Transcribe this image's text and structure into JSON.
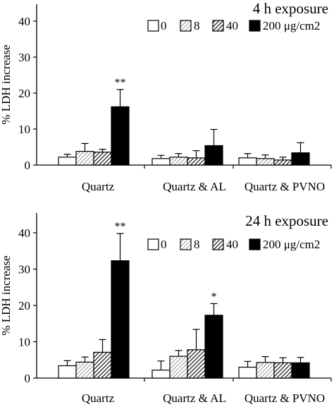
{
  "chart_data": [
    {
      "type": "bar",
      "title": "4 h exposure",
      "ylabel": "% LDH increase",
      "xlabel": "",
      "ylim": [
        0,
        45
      ],
      "yticks": [
        0,
        10,
        20,
        30,
        40
      ],
      "categories": [
        "Quartz",
        "Quartz & AL",
        "Quartz & PVNO"
      ],
      "legend_position": "top-right",
      "series": [
        {
          "name": "0",
          "fill": "white",
          "values": [
            2.2,
            1.8,
            2.0
          ],
          "errors": [
            0.8,
            0.9,
            1.2
          ]
        },
        {
          "name": "8",
          "fill": "light-hatch",
          "values": [
            3.8,
            2.2,
            1.8
          ],
          "errors": [
            2.2,
            1.0,
            1.0
          ]
        },
        {
          "name": "40",
          "fill": "dark-hatch",
          "values": [
            3.6,
            2.0,
            1.4
          ],
          "errors": [
            0.8,
            2.0,
            0.8
          ]
        },
        {
          "name": "200 μg/cm2",
          "fill": "black",
          "values": [
            16.2,
            5.4,
            3.4
          ],
          "errors": [
            4.8,
            4.5,
            2.8
          ]
        }
      ],
      "annotations": [
        {
          "category": "Quartz",
          "series": "200 μg/cm2",
          "text": "**"
        }
      ]
    },
    {
      "type": "bar",
      "title": "24 h exposure",
      "ylabel": "% LDH increase",
      "xlabel": "",
      "ylim": [
        0,
        45
      ],
      "yticks": [
        0,
        10,
        20,
        30,
        40
      ],
      "categories": [
        "Quartz",
        "Quartz & AL",
        "Quartz & PVNO"
      ],
      "legend_position": "top-right",
      "series": [
        {
          "name": "0",
          "fill": "white",
          "values": [
            3.4,
            2.2,
            3.0
          ],
          "errors": [
            1.4,
            2.5,
            1.6
          ]
        },
        {
          "name": "8",
          "fill": "light-hatch",
          "values": [
            4.4,
            6.0,
            4.3
          ],
          "errors": [
            1.4,
            1.6,
            1.6
          ]
        },
        {
          "name": "40",
          "fill": "dark-hatch",
          "values": [
            7.1,
            7.8,
            4.2
          ],
          "errors": [
            3.5,
            5.6,
            1.4
          ]
        },
        {
          "name": "200 μg/cm2",
          "fill": "black",
          "values": [
            32.3,
            17.3,
            4.2
          ],
          "errors": [
            7.5,
            3.2,
            1.5
          ]
        }
      ],
      "annotations": [
        {
          "category": "Quartz",
          "series": "200 μg/cm2",
          "text": "**"
        },
        {
          "category": "Quartz & AL",
          "series": "200 μg/cm2",
          "text": "*"
        }
      ]
    }
  ]
}
